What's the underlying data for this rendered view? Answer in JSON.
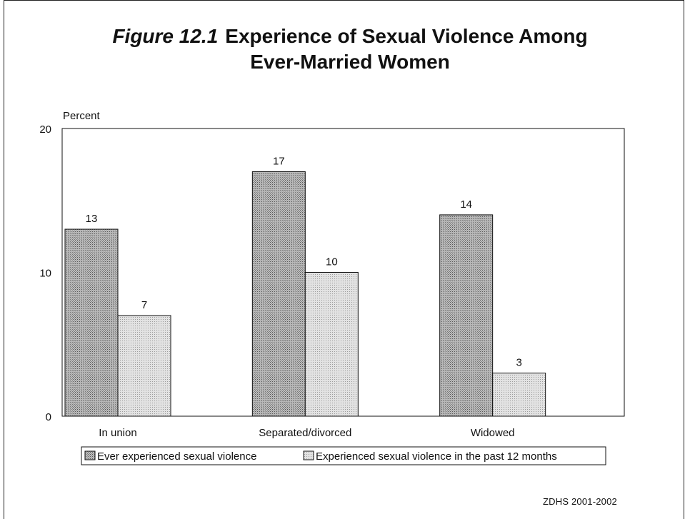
{
  "figure": {
    "number": "Figure 12.1",
    "title_line1": "Experience of Sexual Violence Among",
    "title_line2": "Ever-Married Women",
    "source": "ZDHS 2001-2002"
  },
  "chart_data": {
    "type": "bar",
    "title": "Experience of Sexual Violence Among Ever-Married Women",
    "ylabel": "Percent",
    "xlabel": "",
    "ylim": [
      0,
      20
    ],
    "yticks": [
      0,
      10,
      20
    ],
    "categories": [
      "In union",
      "Separated/divorced",
      "Widowed"
    ],
    "series": [
      {
        "name": "Ever experienced sexual violence",
        "values": [
          13,
          17,
          14
        ],
        "pattern": "dark-dots"
      },
      {
        "name": "Experienced sexual violence in the past 12 months",
        "values": [
          7,
          10,
          3
        ],
        "pattern": "light-dots"
      }
    ],
    "legend_position": "bottom",
    "grid": false
  }
}
